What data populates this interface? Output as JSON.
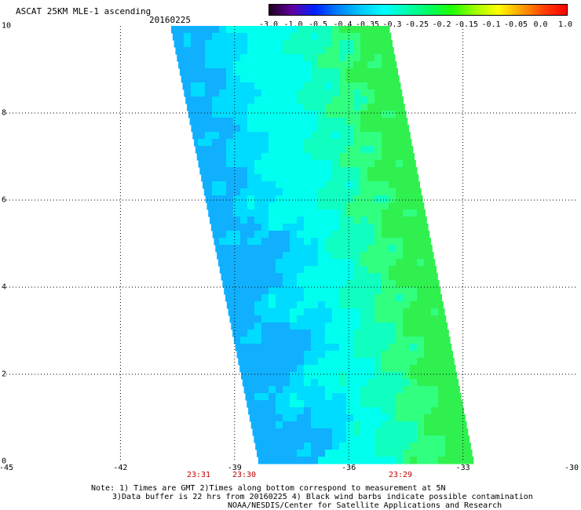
{
  "header": {
    "title": "ASCAT 25KM MLE-1 ascending",
    "date": "20160225"
  },
  "colorbar": {
    "labels": [
      "-3.0",
      "-1.0",
      "-0.5",
      "-0.4",
      "-0.35",
      "-0.3",
      "-0.25",
      "-0.2",
      "-0.15",
      "-0.1",
      "-0.05",
      "0.0",
      "1.0"
    ],
    "colors": [
      "#200020",
      "#6000a0",
      "#0020ff",
      "#0080ff",
      "#00c8ff",
      "#00ffff",
      "#00ffb0",
      "#00ff60",
      "#20ff00",
      "#a0ff00",
      "#ffff00",
      "#ffa000",
      "#ff4000",
      "#ff0000"
    ]
  },
  "axes": {
    "y_labels": [
      "10",
      "8",
      "6",
      "4",
      "2",
      "0"
    ],
    "x_labels": [
      "-45",
      "-42",
      "-39",
      "-36",
      "-33",
      "-30"
    ],
    "time_labels": [
      "23:31",
      "23:30",
      "23:29"
    ]
  },
  "footer": {
    "note_line1": "Note: 1) Times are GMT 2)Times along bottom correspond to measurement at 5N",
    "note_line2": "3)Data buffer is 22 hrs from 20160225 4) Black wind barbs indicate possible contamination",
    "credit": "NOAA/NESDIS/Center for Satellite Applications and Research"
  },
  "swath": {
    "dominant_color": "#00ffff",
    "edge_color_east": "#30ff50",
    "low_patch_color": "#00c8ff",
    "value_range": [
      -0.4,
      -0.15
    ]
  }
}
